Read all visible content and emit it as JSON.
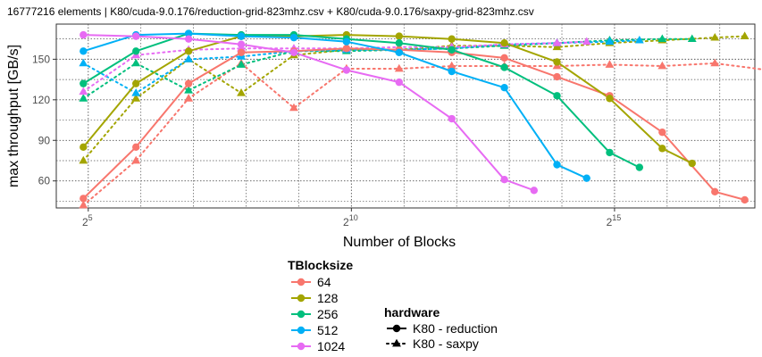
{
  "chart_data": {
    "type": "line",
    "title": "16777216 elements | K80/cuda-9.0.176/reduction-grid-823mhz.csv + K80/cuda-9.0.176/saxpy-grid-823mhz.csv",
    "xlabel": "Number of Blocks",
    "ylabel": "max throughput [GB/s]",
    "x_scale": "log2",
    "x_ticks": [
      {
        "value": 32,
        "base": "2",
        "exp": "5"
      },
      {
        "value": 1024,
        "base": "2",
        "exp": "10"
      },
      {
        "value": 32768,
        "base": "2",
        "exp": "15"
      }
    ],
    "y_ticks": [
      60,
      90,
      120,
      150
    ],
    "xlim": [
      21,
      208000
    ],
    "ylim": [
      40,
      176
    ],
    "grid": true,
    "color_legend": {
      "title": "TBlocksize",
      "entries": [
        {
          "label": "64",
          "color": "#F8766D"
        },
        {
          "label": "128",
          "color": "#A3A500"
        },
        {
          "label": "256",
          "color": "#00BF7D"
        },
        {
          "label": "512",
          "color": "#00B0F6"
        },
        {
          "label": "1024",
          "color": "#E76BF3"
        }
      ]
    },
    "hardware_legend": {
      "title": "hardware",
      "entries": [
        {
          "label": "K80 - reduction",
          "linetype": "solid",
          "shape": "circle"
        },
        {
          "label": "K80 - saxpy",
          "linetype": "dotted",
          "shape": "triangle"
        }
      ]
    },
    "series": [
      {
        "name": "64",
        "hardware": "K80 - reduction",
        "color": "#F8766D",
        "linetype": "solid",
        "shape": "circle",
        "x": [
          30,
          60,
          120,
          240,
          480,
          960,
          1920,
          3840,
          7680,
          15360,
          30720,
          61440,
          122880,
          182000
        ],
        "y": [
          47,
          85,
          132,
          155,
          156,
          158,
          157,
          155,
          151,
          137,
          123,
          96,
          52,
          46
        ]
      },
      {
        "name": "128",
        "hardware": "K80 - reduction",
        "color": "#A3A500",
        "linetype": "solid",
        "shape": "circle",
        "x": [
          30,
          60,
          120,
          240,
          480,
          960,
          1920,
          3840,
          7680,
          15360,
          30720,
          61440,
          91000
        ],
        "y": [
          85,
          132,
          156,
          167,
          167,
          168,
          167,
          165,
          162,
          148,
          121,
          84,
          73
        ]
      },
      {
        "name": "256",
        "hardware": "K80 - reduction",
        "color": "#00BF7D",
        "linetype": "solid",
        "shape": "circle",
        "x": [
          30,
          60,
          120,
          240,
          480,
          960,
          1920,
          3840,
          7680,
          15360,
          30720,
          45500
        ],
        "y": [
          132,
          156,
          169,
          168,
          168,
          165,
          162,
          157,
          144,
          123,
          81,
          70
        ]
      },
      {
        "name": "512",
        "hardware": "K80 - reduction",
        "color": "#00B0F6",
        "linetype": "solid",
        "shape": "circle",
        "x": [
          30,
          60,
          120,
          240,
          480,
          960,
          1920,
          3840,
          7680,
          15360,
          22700
        ],
        "y": [
          156,
          168,
          169,
          167,
          166,
          163,
          155,
          141,
          129,
          72,
          62
        ]
      },
      {
        "name": "1024",
        "hardware": "K80 - reduction",
        "color": "#E76BF3",
        "linetype": "solid",
        "shape": "circle",
        "x": [
          30,
          60,
          120,
          240,
          480,
          960,
          1920,
          3840,
          7680,
          11350
        ],
        "y": [
          168,
          167,
          165,
          161,
          155,
          142,
          133,
          106,
          61,
          53
        ]
      },
      {
        "name": "64",
        "hardware": "K80 - saxpy",
        "color": "#F8766D",
        "linetype": "dotted",
        "shape": "triangle",
        "x": [
          30,
          60,
          120,
          240,
          480,
          960,
          1920,
          3840,
          7680,
          15360,
          30720,
          61440,
          122880,
          245760,
          327680
        ],
        "y": [
          42,
          75,
          121,
          147,
          114,
          143,
          143,
          145,
          145,
          145,
          146,
          145,
          147,
          142,
          140
        ]
      },
      {
        "name": "128",
        "hardware": "K80 - saxpy",
        "color": "#A3A500",
        "linetype": "dotted",
        "shape": "triangle",
        "x": [
          30,
          60,
          120,
          240,
          480,
          960,
          1920,
          3840,
          7680,
          15360,
          30720,
          61440,
          122880,
          182000
        ],
        "y": [
          75,
          121,
          150,
          125,
          153,
          157,
          157,
          160,
          160,
          159,
          162,
          164,
          166,
          167
        ]
      },
      {
        "name": "256",
        "hardware": "K80 - saxpy",
        "color": "#00BF7D",
        "linetype": "dotted",
        "shape": "triangle",
        "x": [
          30,
          60,
          120,
          240,
          480,
          960,
          1920,
          3840,
          7680,
          15360,
          30720,
          61440,
          91000
        ],
        "y": [
          121,
          147,
          127,
          146,
          156,
          156,
          157,
          158,
          160,
          162,
          164,
          165,
          165
        ]
      },
      {
        "name": "512",
        "hardware": "K80 - saxpy",
        "color": "#00B0F6",
        "linetype": "dotted",
        "shape": "triangle",
        "x": [
          30,
          60,
          120,
          240,
          480,
          960,
          1920,
          3840,
          7680,
          15360,
          30720,
          45500
        ],
        "y": [
          147,
          125,
          150,
          152,
          156,
          157,
          157,
          158,
          161,
          162,
          163,
          164
        ]
      },
      {
        "name": "1024",
        "hardware": "K80 - saxpy",
        "color": "#E76BF3",
        "linetype": "dotted",
        "shape": "triangle",
        "x": [
          30,
          60,
          120,
          240,
          480,
          960,
          1920,
          3840,
          7680,
          15360,
          22700
        ],
        "y": [
          126,
          153,
          157,
          158,
          158,
          158,
          159,
          159,
          161,
          162,
          163
        ]
      }
    ]
  }
}
